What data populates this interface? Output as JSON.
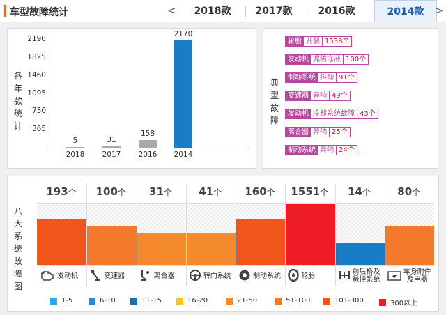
{
  "header": {
    "title": "车型故障统计",
    "tabs": [
      {
        "label": "2018款",
        "active": false
      },
      {
        "label": "2017款",
        "active": false
      },
      {
        "label": "2016款",
        "active": false
      },
      {
        "label": "2014款",
        "active": true
      }
    ]
  },
  "year_chart": {
    "ylabel": "各年款统计",
    "chart_data": {
      "type": "bar",
      "categories": [
        "2018",
        "2017",
        "2016",
        "2014"
      ],
      "values": [
        5,
        31,
        158,
        2170
      ],
      "yticks": [
        365,
        730,
        1095,
        1460,
        1825,
        2190
      ],
      "ylim": [
        0,
        2190
      ],
      "colors": [
        "#a9a9a9",
        "#a9a9a9",
        "#a9a9a9",
        "#1a7cc7"
      ],
      "grid": false
    },
    "value_labels": [
      "5",
      "31",
      "158",
      "2170"
    ]
  },
  "typical_faults": {
    "label": "典型故障",
    "items": [
      {
        "category": "轮胎",
        "part": "开裂",
        "count": "1538个"
      },
      {
        "category": "发动机",
        "part": "漏防冻液",
        "count": "100个"
      },
      {
        "category": "制动系统",
        "part": "抖动",
        "count": "91个"
      },
      {
        "category": "变速器",
        "part": "异响",
        "count": "49个"
      },
      {
        "category": "发动机",
        "part": "冷却系统故障",
        "count": "43个"
      },
      {
        "category": "离合器",
        "part": "异响",
        "count": "25个"
      },
      {
        "category": "制动系统",
        "part": "异响",
        "count": "24个"
      }
    ]
  },
  "systems": {
    "label": "八大系统故障图",
    "unit": "个",
    "chart_data": {
      "type": "bar",
      "categories": [
        "发动机",
        "变速器",
        "离合器",
        "转向系统",
        "制动系统",
        "轮胎",
        "前后桥及悬挂系统",
        "车身附件及电器"
      ],
      "values": [
        193,
        100,
        31,
        41,
        160,
        1551,
        14,
        80
      ],
      "colors": [
        "#f0561b",
        "#f27a2a",
        "#f5892e",
        "#f5892e",
        "#f0561b",
        "#ee1c24",
        "#1a7cc7",
        "#f27a2a"
      ],
      "levels": [
        0.75,
        0.62,
        0.52,
        0.52,
        0.75,
        1.0,
        0.35,
        0.62
      ]
    },
    "components": [
      {
        "name": "发动机",
        "icon": "engine-icon"
      },
      {
        "name": "变速器",
        "icon": "gear-shift-icon"
      },
      {
        "name": "离合器",
        "icon": "clutch-pedal-icon"
      },
      {
        "name": "转向系统",
        "icon": "steering-wheel-icon"
      },
      {
        "name": "制动系统",
        "icon": "brake-disc-icon"
      },
      {
        "name": "轮胎",
        "icon": "tire-icon"
      },
      {
        "name": "前后桥及悬挂系统",
        "line1": "前后桥及",
        "line2": "悬挂系统",
        "icon": "axle-icon"
      },
      {
        "name": "车身附件及电器",
        "line1": "车身附件",
        "line2": "及电器",
        "icon": "battery-icon"
      }
    ]
  },
  "legend": [
    {
      "label": "1-5",
      "color": "#29aae1"
    },
    {
      "label": "6-10",
      "color": "#2a8ad8"
    },
    {
      "label": "11-15",
      "color": "#1a6cb7"
    },
    {
      "label": "16-20",
      "color": "#f6c81b"
    },
    {
      "label": "21-50",
      "color": "#f5892e"
    },
    {
      "label": "51-100",
      "color": "#f27a2a"
    },
    {
      "label": "101-300",
      "color": "#f0561b"
    },
    {
      "label": "300以上",
      "color": "#ee1c24"
    }
  ]
}
